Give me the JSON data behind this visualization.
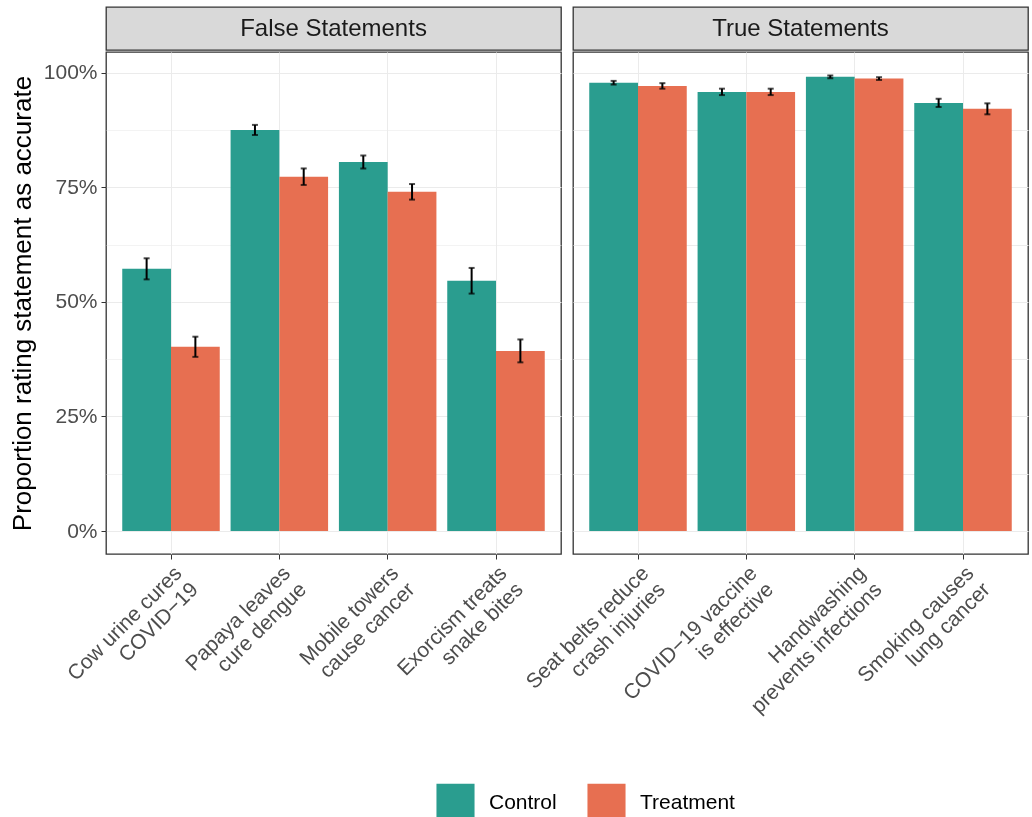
{
  "chart_data": [
    {
      "type": "bar",
      "title": "False Statements",
      "ylabel": "Proportion rating statement as accurate",
      "categories": [
        "Cow urine cures\nCOVID−19",
        "Papaya leaves\ncure dengue",
        "Mobile towers\ncause cancer",
        "Exorcism treats\nsnake bites"
      ],
      "series": [
        {
          "name": "Control",
          "color": "#2a9d8f",
          "values": [
            57.2,
            87.5,
            80.5,
            54.6
          ],
          "errors": [
            2.3,
            1.1,
            1.4,
            2.8
          ]
        },
        {
          "name": "Treatment",
          "color": "#e76f51",
          "values": [
            40.2,
            77.3,
            74.0,
            39.3
          ],
          "errors": [
            2.2,
            1.8,
            1.7,
            2.5
          ]
        }
      ],
      "ylim": [
        -5,
        104.5
      ],
      "yticks": [
        {
          "value": 0,
          "label": "0%"
        },
        {
          "value": 12.5,
          "label": null
        },
        {
          "value": 25,
          "label": "25%"
        },
        {
          "value": 37.5,
          "label": null
        },
        {
          "value": 50,
          "label": "50%"
        },
        {
          "value": 62.5,
          "label": null
        },
        {
          "value": 75,
          "label": "75%"
        },
        {
          "value": 87.5,
          "label": null
        },
        {
          "value": 100,
          "label": "100%"
        }
      ],
      "grid": true,
      "legend": "bottom"
    },
    {
      "type": "bar",
      "title": "True Statements",
      "categories": [
        "Seat belts reduce\ncrash injuries",
        "COVID−19 vaccine\nis effective",
        "Handwashing\nprevents infections",
        "Smoking causes\nlung cancer"
      ],
      "series": [
        {
          "name": "Control",
          "color": "#2a9d8f",
          "values": [
            97.8,
            95.8,
            99.1,
            93.4
          ],
          "errors": [
            0.4,
            0.7,
            0.3,
            0.9
          ]
        },
        {
          "name": "Treatment",
          "color": "#e76f51",
          "values": [
            97.1,
            95.8,
            98.7,
            92.1
          ],
          "errors": [
            0.6,
            0.7,
            0.3,
            1.2
          ]
        }
      ],
      "ylim": [
        -5,
        104.5
      ],
      "yticks": [
        0,
        12.5,
        25,
        37.5,
        50,
        62.5,
        75,
        87.5,
        100
      ],
      "grid": true,
      "tick_labels": "x"
    }
  ]
}
